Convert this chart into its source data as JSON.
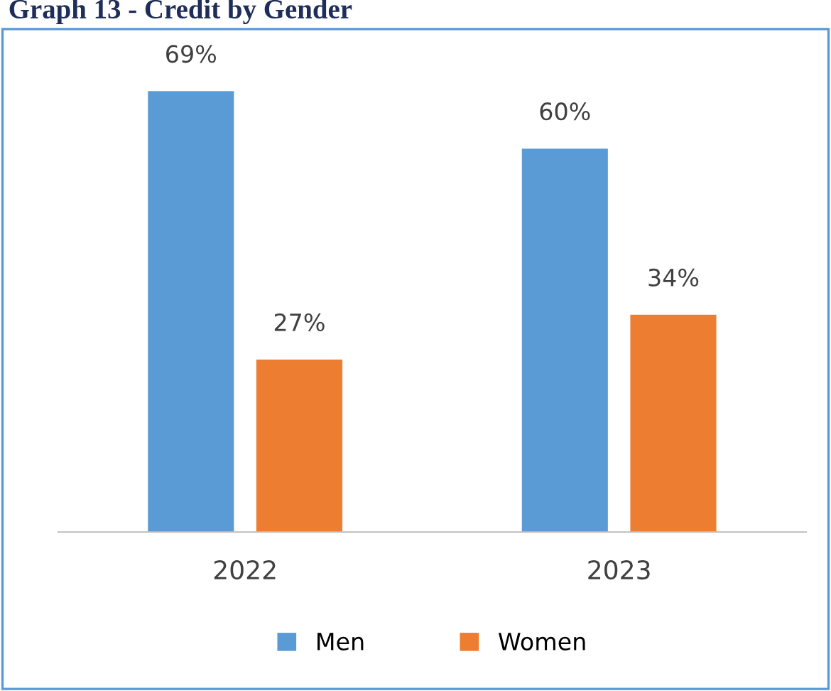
{
  "chart_data": {
    "type": "bar",
    "title": "Graph 13 - Credit by Gender",
    "categories": [
      "2022",
      "2023"
    ],
    "series": [
      {
        "name": "Men",
        "color": "#5b9bd5",
        "values": [
          69,
          60
        ],
        "value_labels": [
          "69%",
          "60%"
        ]
      },
      {
        "name": "Women",
        "color": "#ed7d31",
        "values": [
          27,
          34
        ],
        "value_labels": [
          "27%",
          "34%"
        ]
      }
    ],
    "legend": "bottom"
  }
}
